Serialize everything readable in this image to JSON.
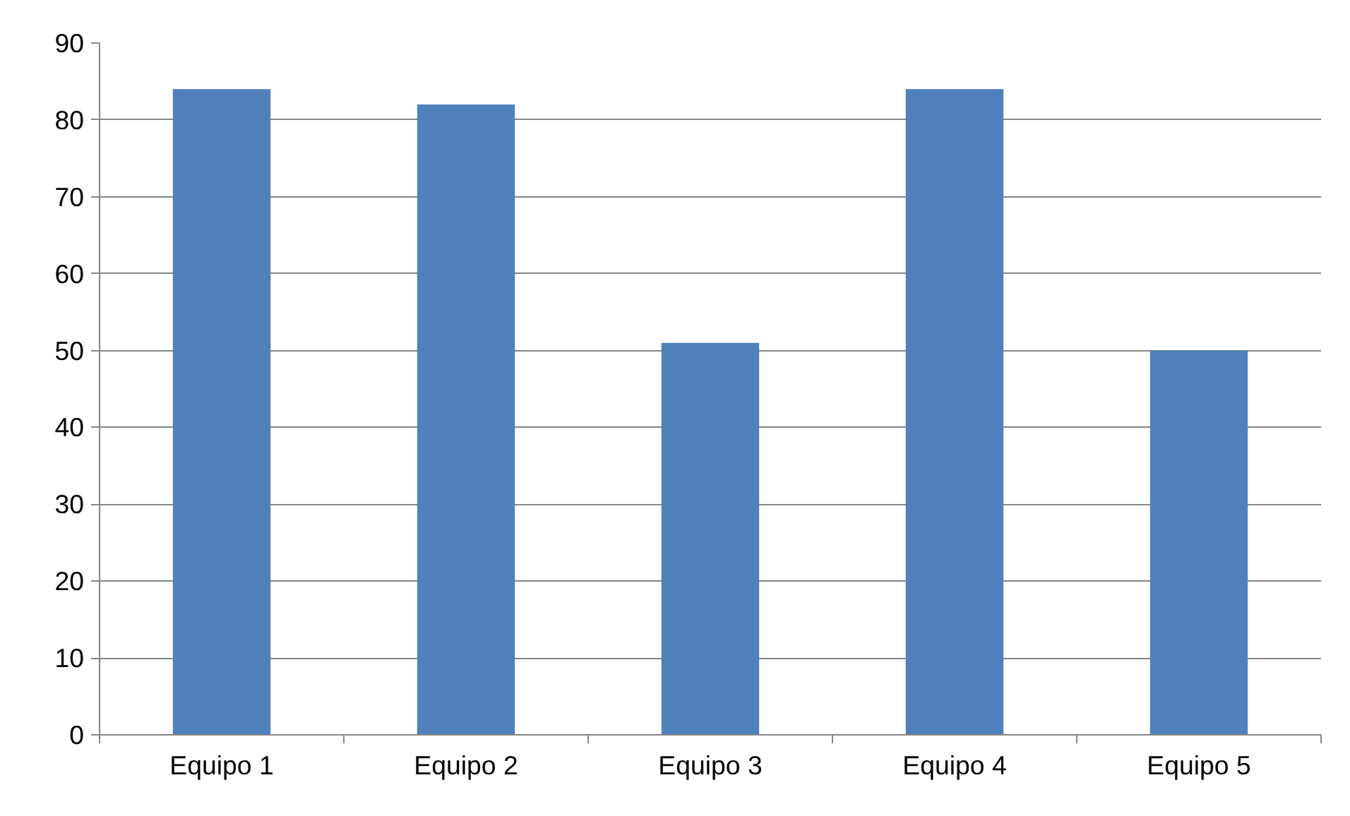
{
  "chart_data": {
    "type": "bar",
    "categories": [
      "Equipo 1",
      "Equipo 2",
      "Equipo 3",
      "Equipo 4",
      "Equipo 5"
    ],
    "values": [
      84,
      82,
      51,
      84,
      50
    ],
    "color": "#4f81bd",
    "ylim": [
      0,
      90
    ],
    "yticks": [
      0,
      10,
      20,
      30,
      40,
      50,
      60,
      70,
      80,
      90
    ],
    "grid": "y"
  }
}
